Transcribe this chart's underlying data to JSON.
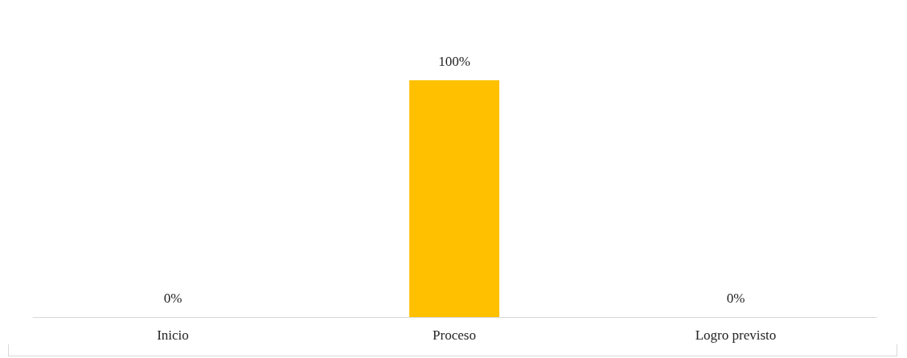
{
  "chart_data": {
    "type": "bar",
    "categories": [
      "Inicio",
      "Proceso",
      "Logro previsto"
    ],
    "values": [
      0,
      100,
      0
    ],
    "color": "#ffc000",
    "value_labels": [
      "0%",
      "100%",
      "0%"
    ]
  }
}
